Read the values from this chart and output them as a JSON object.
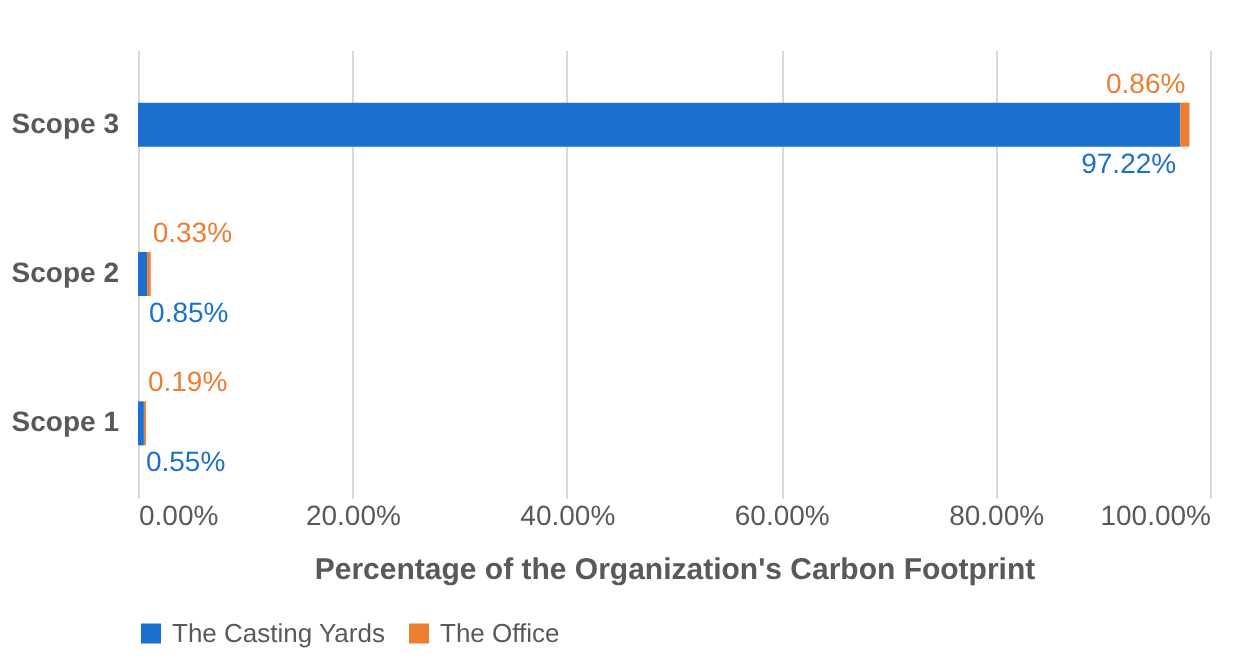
{
  "chart_data": {
    "type": "bar",
    "orientation": "horizontal",
    "stacked": true,
    "xlabel": "Percentage of the Organization's Carbon Footprint",
    "categories": [
      "Scope 3",
      "Scope 2",
      "Scope 1"
    ],
    "series": [
      {
        "name": "The Casting Yards",
        "color": "#1a6fcf",
        "values": [
          97.22,
          0.85,
          0.55
        ],
        "value_labels": [
          "97.22%",
          "0.85%",
          "0.55%"
        ]
      },
      {
        "name": "The Office",
        "color": "#ed7d31",
        "values": [
          0.86,
          0.33,
          0.19
        ],
        "value_labels": [
          "0.86%",
          "0.33%",
          "0.19%"
        ]
      }
    ],
    "xlim": [
      0,
      100
    ],
    "xticks": [
      {
        "value": 0,
        "label": "0.00%"
      },
      {
        "value": 20,
        "label": "20.00%"
      },
      {
        "value": 40,
        "label": "40.00%"
      },
      {
        "value": 60,
        "label": "60.00%"
      },
      {
        "value": 80,
        "label": "80.00%"
      },
      {
        "value": 100,
        "label": "100.00%"
      }
    ],
    "grid": "x",
    "legend": "bottom"
  }
}
